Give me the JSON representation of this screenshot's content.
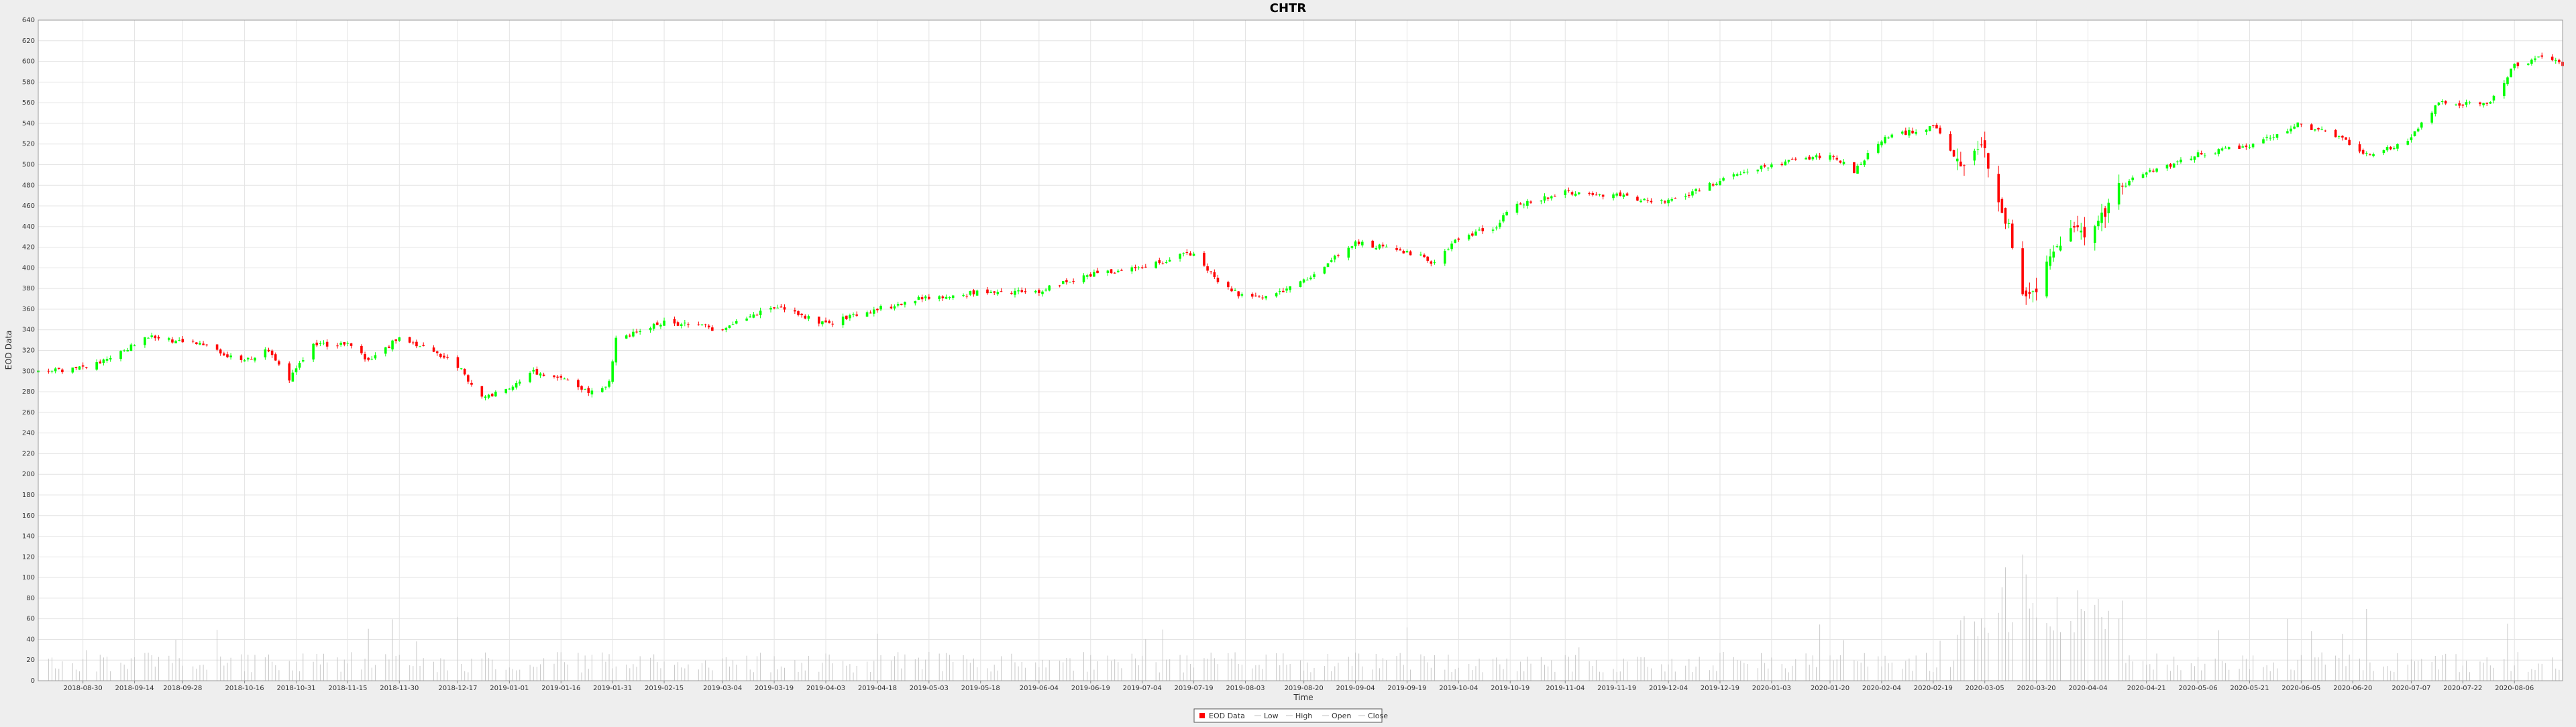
{
  "chart_data": {
    "type": "candlestick",
    "title": "CHTR",
    "xlabel": "Time",
    "ylabel": "EOD Data",
    "ylim": [
      0,
      640
    ],
    "y_tick_step": 20,
    "grid": true,
    "legend_placement": "bottom-center",
    "legend": [
      "EOD Data",
      "Low",
      "High",
      "Open",
      "Close"
    ],
    "x_range": [
      "2018-08-17",
      "2020-08-20"
    ],
    "x_ticks": [
      "2018-08-30",
      "2018-09-14",
      "2018-09-28",
      "2018-10-16",
      "2018-10-31",
      "2018-11-15",
      "2018-11-30",
      "2018-12-17",
      "2019-01-01",
      "2019-01-16",
      "2019-01-31",
      "2019-02-15",
      "2019-03-04",
      "2019-03-19",
      "2019-04-03",
      "2019-04-18",
      "2019-05-03",
      "2019-05-18",
      "2019-06-04",
      "2019-06-19",
      "2019-07-04",
      "2019-07-19",
      "2019-08-03",
      "2019-08-20",
      "2019-09-04",
      "2019-09-19",
      "2019-10-04",
      "2019-10-19",
      "2019-11-04",
      "2019-11-19",
      "2019-12-04",
      "2019-12-19",
      "2020-01-03",
      "2020-01-20",
      "2020-02-04",
      "2020-02-19",
      "2020-03-05",
      "2020-03-20",
      "2020-04-04",
      "2020-04-21",
      "2020-05-06",
      "2020-05-21",
      "2020-06-05",
      "2020-06-20",
      "2020-07-07",
      "2020-07-22",
      "2020-08-06"
    ],
    "colors": {
      "up": "#00ff00",
      "down": "#ff0000",
      "volume": "#c8c8c8",
      "grid": "#e4e4e4"
    },
    "close_trend": [
      [
        "2018-08-17",
        298
      ],
      [
        "2018-08-30",
        304
      ],
      [
        "2018-09-07",
        312
      ],
      [
        "2018-09-18",
        333
      ],
      [
        "2018-09-28",
        328
      ],
      [
        "2018-10-05",
        325
      ],
      [
        "2018-10-16",
        308
      ],
      [
        "2018-10-22",
        322
      ],
      [
        "2018-10-29",
        292
      ],
      [
        "2018-11-05",
        325
      ],
      [
        "2018-11-15",
        326
      ],
      [
        "2018-11-21",
        310
      ],
      [
        "2018-11-30",
        332
      ],
      [
        "2018-12-10",
        318
      ],
      [
        "2018-12-17",
        305
      ],
      [
        "2018-12-24",
        275
      ],
      [
        "2019-01-01",
        282
      ],
      [
        "2019-01-08",
        300
      ],
      [
        "2019-01-16",
        292
      ],
      [
        "2019-01-24",
        280
      ],
      [
        "2019-01-30",
        288
      ],
      [
        "2019-02-01",
        330
      ],
      [
        "2019-02-07",
        338
      ],
      [
        "2019-02-15",
        348
      ],
      [
        "2019-03-04",
        340
      ],
      [
        "2019-03-12",
        352
      ],
      [
        "2019-03-19",
        362
      ],
      [
        "2019-04-03",
        346
      ],
      [
        "2019-04-18",
        360
      ],
      [
        "2019-05-03",
        372
      ],
      [
        "2019-05-18",
        376
      ],
      [
        "2019-06-04",
        378
      ],
      [
        "2019-06-19",
        394
      ],
      [
        "2019-07-04",
        400
      ],
      [
        "2019-07-19",
        415
      ],
      [
        "2019-07-27",
        382
      ],
      [
        "2019-08-03",
        372
      ],
      [
        "2019-08-12",
        374
      ],
      [
        "2019-08-20",
        388
      ],
      [
        "2019-09-04",
        424
      ],
      [
        "2019-09-19",
        416
      ],
      [
        "2019-09-27",
        405
      ],
      [
        "2019-10-04",
        428
      ],
      [
        "2019-10-15",
        440
      ],
      [
        "2019-10-19",
        458
      ],
      [
        "2019-11-04",
        474
      ],
      [
        "2019-11-19",
        470
      ],
      [
        "2019-12-04",
        464
      ],
      [
        "2019-12-19",
        484
      ],
      [
        "2020-01-03",
        500
      ],
      [
        "2020-01-20",
        510
      ],
      [
        "2020-01-27",
        494
      ],
      [
        "2020-02-04",
        524
      ],
      [
        "2020-02-19",
        538
      ],
      [
        "2020-02-27",
        498
      ],
      [
        "2020-03-05",
        515
      ],
      [
        "2020-03-12",
        440
      ],
      [
        "2020-03-16",
        380
      ],
      [
        "2020-03-20",
        368
      ],
      [
        "2020-03-24",
        408
      ],
      [
        "2020-03-30",
        440
      ],
      [
        "2020-04-04",
        425
      ],
      [
        "2020-04-13",
        478
      ],
      [
        "2020-04-21",
        492
      ],
      [
        "2020-05-06",
        510
      ],
      [
        "2020-05-21",
        518
      ],
      [
        "2020-06-05",
        540
      ],
      [
        "2020-06-20",
        520
      ],
      [
        "2020-06-25",
        508
      ],
      [
        "2020-07-07",
        526
      ],
      [
        "2020-07-15",
        560
      ],
      [
        "2020-07-22",
        558
      ],
      [
        "2020-07-30",
        560
      ],
      [
        "2020-08-06",
        596
      ],
      [
        "2020-08-14",
        604
      ],
      [
        "2020-08-20",
        598
      ]
    ]
  }
}
